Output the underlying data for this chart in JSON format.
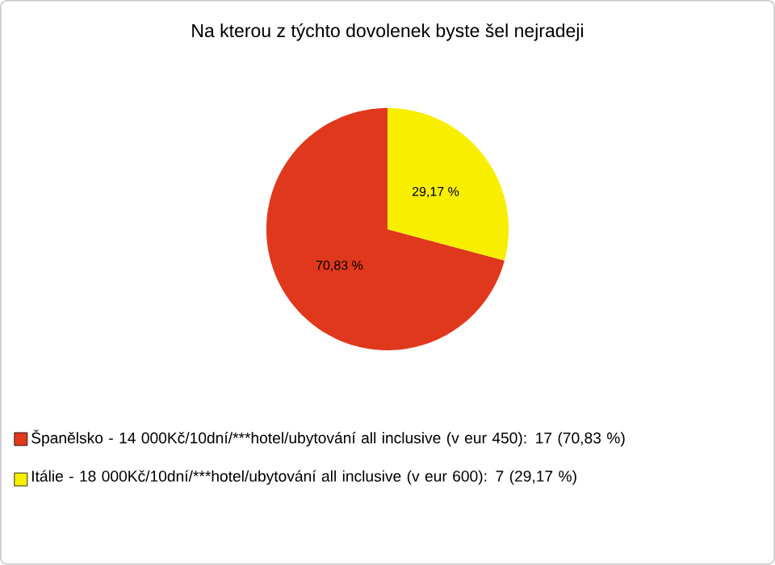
{
  "chart_data": {
    "type": "pie",
    "title": "Na kterou z týchto dovolenek byste šel nejradeji",
    "categories": [
      "Španělsko - 14 000Kč/10dní/***hotel/ubytování all inclusive (v eur 450): 17 (70,83 %)",
      "Itálie - 18 000Kč/10dní/***hotel/ubytování all inclusive (v eur 600): 7 (29,17 %)"
    ],
    "values": [
      70.83,
      29.17
    ],
    "value_labels": [
      "70,83 %",
      "29,17 %"
    ],
    "colors": [
      "#e0381c",
      "#f7ee00"
    ],
    "legend": "bottom"
  }
}
